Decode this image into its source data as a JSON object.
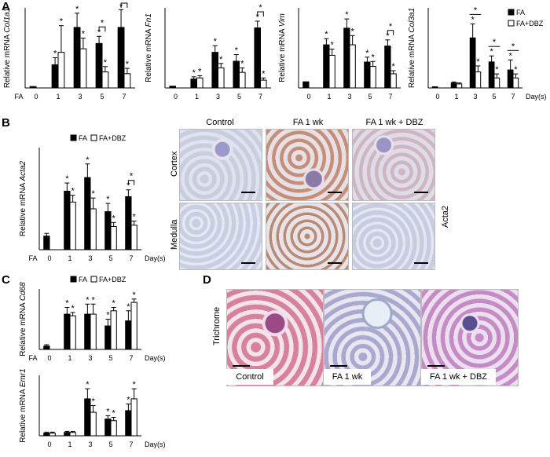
{
  "panels": {
    "a": "A",
    "b": "B",
    "c": "C",
    "d": "D"
  },
  "colors": {
    "fa": "#000000",
    "fadbz": "#ffffff",
    "stroke": "#000000"
  },
  "chart_data": [
    {
      "id": "col1a1",
      "type": "bar",
      "ylabel_prefix": "Relative mRNA ",
      "gene": "Col1a1",
      "xlead": "FA",
      "categories": [
        "0",
        "1",
        "3",
        "5",
        "7"
      ],
      "ylim": [
        0,
        45
      ],
      "series": [
        {
          "name": "FA",
          "values": [
            0.8,
            13,
            34,
            25,
            34
          ],
          "err": [
            0,
            4,
            8,
            4,
            10
          ]
        },
        {
          "name": "FA+DBZ",
          "values": [
            null,
            20,
            22,
            9,
            8
          ],
          "err": [
            0,
            15,
            6,
            3,
            3
          ]
        }
      ],
      "stars": [
        [
          null,
          null
        ],
        [
          "*",
          "*"
        ],
        [
          "*",
          "*"
        ],
        [
          "*",
          "*"
        ],
        [
          "*",
          "*"
        ]
      ],
      "brackets": [
        {
          "cat": 3
        },
        {
          "cat": 4
        }
      ],
      "unit": ""
    },
    {
      "id": "fn1",
      "type": "bar",
      "ylabel_prefix": "Relative mRNA ",
      "gene": "Fn1",
      "xlead": "",
      "categories": [
        "0",
        "1",
        "3",
        "5",
        "7"
      ],
      "ylim": [
        0,
        36
      ],
      "series": [
        {
          "name": "FA",
          "values": [
            0.8,
            4,
            16,
            12,
            27
          ],
          "err": [
            0,
            1,
            3,
            3,
            3
          ]
        },
        {
          "name": "FA+DBZ",
          "values": [
            null,
            4.5,
            9,
            7,
            3.5
          ],
          "err": [
            0,
            1,
            2,
            2,
            1
          ]
        }
      ],
      "stars": [
        [
          null,
          null
        ],
        [
          "*",
          "*"
        ],
        [
          "*",
          "*"
        ],
        [
          "*",
          "*"
        ],
        [
          "*",
          "*"
        ]
      ],
      "brackets": [
        {
          "cat": 4
        }
      ],
      "unit": ""
    },
    {
      "id": "vim",
      "type": "bar",
      "ylabel_prefix": "Relative mRNA ",
      "gene": "Vim",
      "xlead": "",
      "categories": [
        "0",
        "1",
        "3",
        "5",
        "7"
      ],
      "ylim": [
        0,
        13
      ],
      "series": [
        {
          "name": "FA",
          "values": [
            1,
            7,
            9.7,
            4.2,
            6.8
          ],
          "err": [
            0,
            1,
            1.5,
            0.8,
            1
          ]
        },
        {
          "name": "FA+DBZ",
          "values": [
            null,
            5.3,
            7,
            3.5,
            2.3
          ],
          "err": [
            0,
            1,
            1.5,
            0.8,
            0.5
          ]
        }
      ],
      "stars": [
        [
          null,
          null
        ],
        [
          "*",
          "*"
        ],
        [
          "*",
          "*"
        ],
        [
          "*",
          "*"
        ],
        [
          "*",
          "*"
        ]
      ],
      "brackets": [
        {
          "cat": 4
        }
      ],
      "unit": ""
    },
    {
      "id": "col3a1",
      "type": "bar",
      "ylabel_prefix": "Relative mRNA ",
      "gene": "Col3a1",
      "xlead": "",
      "categories": [
        "0",
        "1",
        "3",
        "5",
        "7"
      ],
      "ylim": [
        0,
        40
      ],
      "series": [
        {
          "name": "FA",
          "values": [
            0.6,
            2.5,
            25,
            13,
            9
          ],
          "err": [
            0,
            0.5,
            7,
            3,
            5
          ]
        },
        {
          "name": "FA+DBZ",
          "values": [
            null,
            2,
            8,
            5,
            5
          ],
          "err": [
            0,
            0.5,
            3,
            2,
            2
          ]
        }
      ],
      "stars": [
        [
          null,
          null
        ],
        [
          null,
          null
        ],
        [
          "*",
          "*"
        ],
        [
          "*",
          "*"
        ],
        [
          "*",
          "*"
        ]
      ],
      "brackets": [
        {
          "cat": 2,
          "wide": true
        },
        {
          "cat": 3,
          "wide": true
        },
        {
          "cat": 4,
          "wide": true
        }
      ],
      "unit": "Day(s)",
      "legend": true
    },
    {
      "id": "acta2",
      "type": "bar",
      "ylabel_prefix": "Relative mRNA ",
      "gene": "Acta2",
      "xlead": "FA",
      "categories": [
        "0",
        "1",
        "3",
        "5",
        "7"
      ],
      "ylim": [
        0,
        7.5
      ],
      "series": [
        {
          "name": "FA",
          "values": [
            1,
            4.3,
            5.3,
            2.8,
            3.9
          ],
          "err": [
            0.2,
            0.6,
            1,
            0.6,
            0.5
          ]
        },
        {
          "name": "FA+DBZ",
          "values": [
            null,
            3.5,
            3,
            1.7,
            1.8
          ],
          "err": [
            0,
            0.5,
            0.8,
            0.3,
            0.3
          ]
        }
      ],
      "stars": [
        [
          null,
          null
        ],
        [
          "*",
          "*"
        ],
        [
          "*",
          "*"
        ],
        [
          "*",
          "*"
        ],
        [
          "*",
          "*"
        ]
      ],
      "brackets": [
        {
          "cat": 4
        }
      ],
      "unit": "Day(s)",
      "legend": true
    },
    {
      "id": "cd68",
      "type": "bar",
      "ylabel_prefix": "Relative mRNA ",
      "gene": "Cd68",
      "xlead": "FA",
      "categories": [
        "0",
        "1",
        "3",
        "5",
        "7"
      ],
      "ylim": [
        0,
        18
      ],
      "series": [
        {
          "name": "FA",
          "values": [
            1,
            10.5,
            10.5,
            7,
            8.5
          ],
          "err": [
            0.4,
            2,
            3,
            2,
            3
          ]
        },
        {
          "name": "FA+DBZ",
          "values": [
            null,
            10,
            10.5,
            11.5,
            14
          ],
          "err": [
            0,
            1,
            3,
            1,
            1
          ]
        }
      ],
      "stars": [
        [
          null,
          null
        ],
        [
          "*",
          "*"
        ],
        [
          "*",
          "*"
        ],
        [
          "*",
          "*"
        ],
        [
          "*",
          "*"
        ]
      ],
      "brackets": [],
      "unit": "Day(s)",
      "legend": true
    },
    {
      "id": "emr1",
      "type": "bar",
      "ylabel_prefix": "Relative mRNA ",
      "gene": "Emr1",
      "xlead": "",
      "categories": [
        "0",
        "1",
        "3",
        "5",
        "7"
      ],
      "ylim": [
        0,
        18
      ],
      "series": [
        {
          "name": "FA",
          "values": [
            0.8,
            1,
            11,
            5,
            7.5
          ],
          "err": [
            0.3,
            0.3,
            3,
            1,
            2
          ]
        },
        {
          "name": "FA+DBZ",
          "values": [
            0.8,
            1,
            7,
            4.5,
            11
          ],
          "err": [
            0.3,
            0.3,
            2,
            1,
            3
          ]
        }
      ],
      "stars": [
        [
          null,
          null
        ],
        [
          null,
          null
        ],
        [
          "*",
          "*"
        ],
        [
          "*",
          "*"
        ],
        [
          "*",
          "*"
        ]
      ],
      "brackets": [],
      "unit": "Day(s)"
    }
  ],
  "legend": {
    "fa": "FA",
    "fadbz": "FA+DBZ"
  },
  "panel_b_images": {
    "columns": [
      "Control",
      "FA 1 wk",
      "FA 1 wk + DBZ"
    ],
    "rows": [
      "Cortex",
      "Medulla"
    ],
    "side": "Acta2"
  },
  "panel_d_images": {
    "row_label": "Trichrome",
    "captions": [
      "Control",
      "FA 1 wk",
      "FA 1 wk + DBZ"
    ]
  }
}
